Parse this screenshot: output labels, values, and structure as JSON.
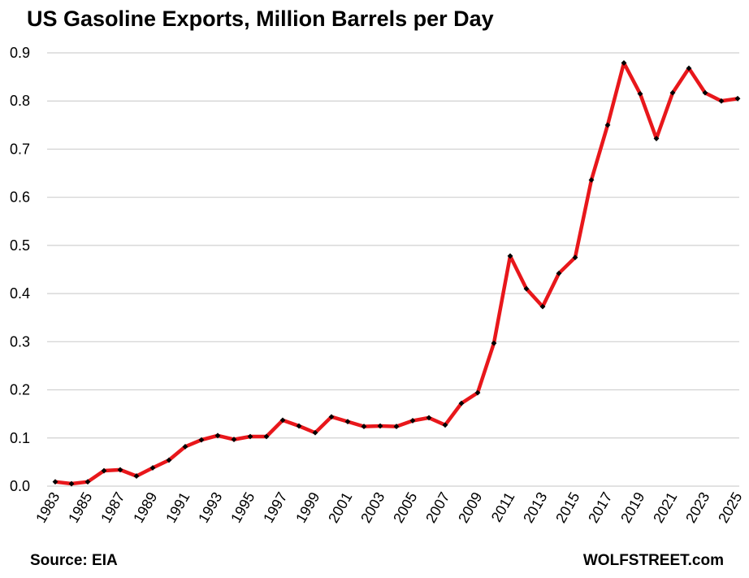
{
  "header": {
    "title": "US Gasoline Exports, Million Barrels per Day"
  },
  "footer": {
    "source": "Source: EIA",
    "brand": "WOLFSTREET.com"
  },
  "chart_data": {
    "type": "line",
    "title": "US Gasoline Exports, Million Barrels per Day",
    "xlabel": "",
    "ylabel": "",
    "ylim": [
      0,
      0.9
    ],
    "y_ticks": [
      "0.0",
      "0.1",
      "0.2",
      "0.3",
      "0.4",
      "0.5",
      "0.6",
      "0.7",
      "0.8",
      "0.9"
    ],
    "x_ticks": [
      "1983",
      "1985",
      "1987",
      "1989",
      "1991",
      "1993",
      "1995",
      "1997",
      "1999",
      "2001",
      "2003",
      "2005",
      "2007",
      "2009",
      "2011",
      "2013",
      "2015",
      "2017",
      "2019",
      "2021",
      "2023",
      "2025"
    ],
    "grid": "horizontal",
    "legend": "none",
    "line_color": "#e8171b",
    "marker_color": "#000000",
    "x": [
      1983,
      1984,
      1985,
      1986,
      1987,
      1988,
      1989,
      1990,
      1991,
      1992,
      1993,
      1994,
      1995,
      1996,
      1997,
      1998,
      1999,
      2000,
      2001,
      2002,
      2003,
      2004,
      2005,
      2006,
      2007,
      2008,
      2009,
      2010,
      2011,
      2012,
      2013,
      2014,
      2015,
      2016,
      2017,
      2018,
      2019,
      2020,
      2021,
      2022,
      2023,
      2024,
      2025
    ],
    "series": [
      {
        "values": [
          0.009,
          0.005,
          0.009,
          0.032,
          0.034,
          0.021,
          0.038,
          0.054,
          0.082,
          0.096,
          0.105,
          0.097,
          0.103,
          0.103,
          0.137,
          0.125,
          0.111,
          0.144,
          0.134,
          0.124,
          0.125,
          0.124,
          0.136,
          0.142,
          0.127,
          0.172,
          0.194,
          0.297,
          0.478,
          0.41,
          0.373,
          0.442,
          0.475,
          0.636,
          0.75,
          0.879,
          0.815,
          0.722,
          0.817,
          0.868,
          0.817,
          0.8,
          0.805
        ]
      }
    ]
  }
}
